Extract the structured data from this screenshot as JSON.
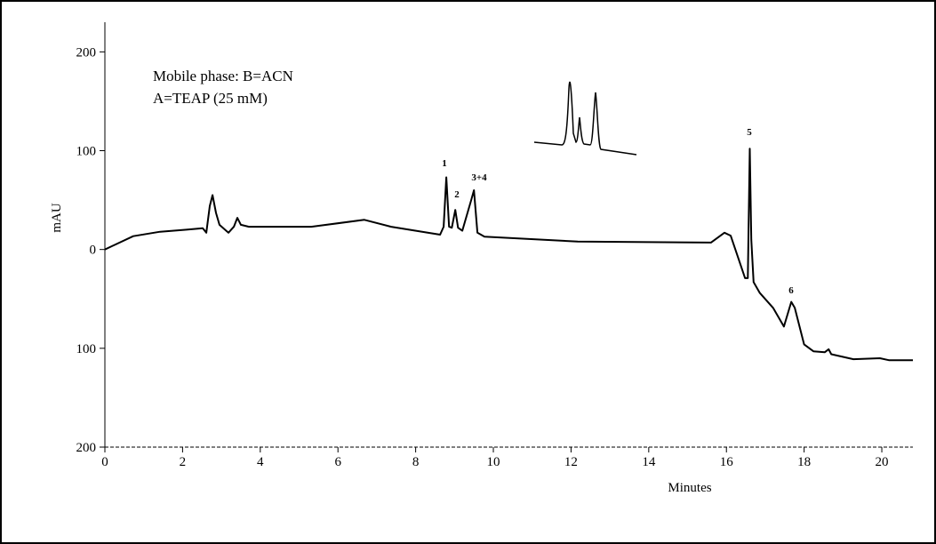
{
  "chart_data": {
    "type": "line",
    "annotations": [
      "Mobile phase: B=ACN",
      "A=TEAP (25 mM)"
    ],
    "peak_labels": [
      "1",
      "2",
      "3+4",
      "5",
      "6"
    ],
    "y_label": "mAU",
    "x_label": "Minutes",
    "xlim": [
      0,
      20.8
    ],
    "ylim": [
      -200,
      230
    ],
    "xticks": [
      0,
      2,
      4,
      6,
      8,
      10,
      12,
      14,
      16,
      18,
      20
    ],
    "yticks": [
      {
        "value": 200,
        "label": "200"
      },
      {
        "value": 100,
        "label": "100"
      },
      0,
      {
        "value": -100,
        "label": "100"
      },
      {
        "value": -200,
        "label": "200"
      }
    ],
    "series": [
      {
        "color": "#000000",
        "x": [
          0,
          0.27,
          0.73,
          1.42,
          2.1,
          2.52,
          2.61,
          2.7,
          2.77,
          2.86,
          2.95,
          3.18,
          3.32,
          3.41,
          3.5,
          3.71,
          5.31,
          6.68,
          7.37,
          8.63,
          8.72,
          8.79,
          8.86,
          8.93,
          9.02,
          9.09,
          9.2,
          9.43,
          9.5,
          9.59,
          9.77,
          12.17,
          15.6,
          15.95,
          16.11,
          16.3,
          16.48,
          16.55,
          16.6,
          16.64,
          16.7,
          16.86,
          17.2,
          17.48,
          17.67,
          17.76,
          18.0,
          18.24,
          18.53,
          18.63,
          18.7,
          19.27,
          19.95,
          20.18,
          20.8
        ],
        "values": [
          0,
          5,
          13.5,
          18,
          20,
          21.6,
          17,
          44,
          55,
          37,
          25,
          17,
          23,
          32,
          25,
          23,
          23,
          30,
          23,
          15,
          23,
          73,
          23,
          22,
          40,
          22,
          19,
          50,
          60,
          17,
          13,
          8,
          7,
          17,
          14,
          -8,
          -29,
          -29,
          102,
          10,
          -33,
          -44,
          -59,
          -78,
          -53,
          -59,
          -96,
          -103,
          -104,
          -101,
          -106,
          -111,
          -110,
          -112,
          -112
        ]
      }
    ]
  }
}
